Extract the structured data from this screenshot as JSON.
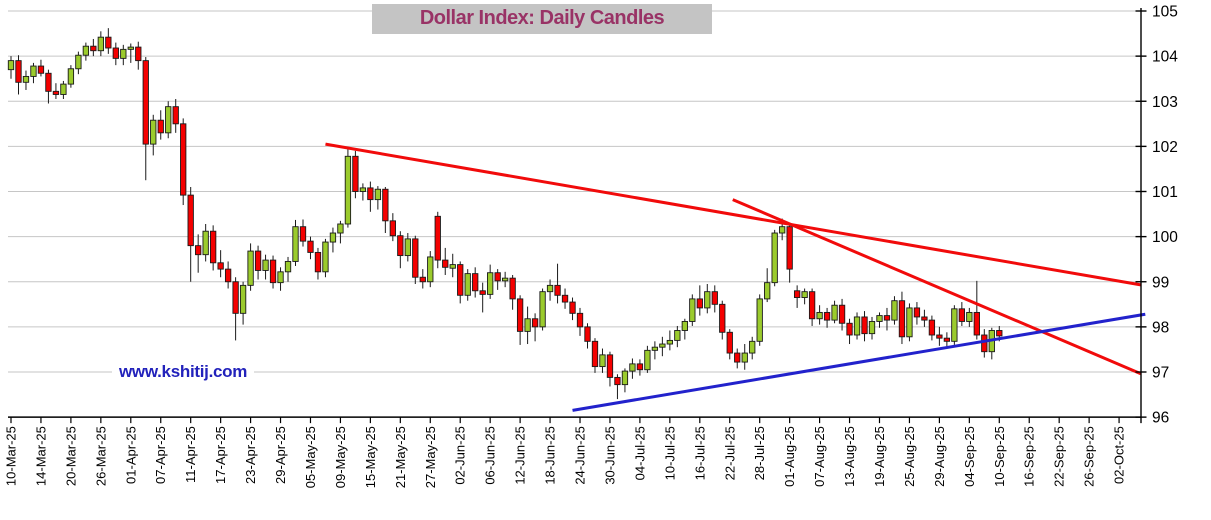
{
  "title": "Dollar Index: Daily Candles",
  "watermark": "www.kshitij.com",
  "colors": {
    "up_candle": "#9bcb2d",
    "down_candle": "#f40000",
    "candle_outline": "#1a1a1a",
    "wick": "#1a1a1a",
    "trendline_red": "#f10b0b",
    "trendline_blue": "#2222cc",
    "grid": "#c6c6c6",
    "axis": "#000000",
    "tick_label": "#000000",
    "title_color": "#993366",
    "title_bg": "#c4c4c4",
    "watermark_color": "#2222bb",
    "background": "#ffffff"
  },
  "chart_data": {
    "type": "candlestick",
    "title": "Dollar Index: Daily Candles",
    "ylim": [
      96,
      105
    ],
    "y_ticks": [
      96,
      97,
      98,
      99,
      100,
      101,
      102,
      103,
      104,
      105
    ],
    "grid": "horizontal-only",
    "x_tick_labels": [
      "10-Mar-25",
      "14-Mar-25",
      "20-Mar-25",
      "26-Mar-25",
      "01-Apr-25",
      "07-Apr-25",
      "11-Apr-25",
      "17-Apr-25",
      "23-Apr-25",
      "29-Apr-25",
      "05-May-25",
      "09-May-25",
      "15-May-25",
      "21-May-25",
      "27-May-25",
      "02-Jun-25",
      "06-Jun-25",
      "12-Jun-25",
      "18-Jun-25",
      "24-Jun-25",
      "30-Jun-25",
      "04-Jul-25",
      "10-Jul-25",
      "16-Jul-25",
      "22-Jul-25",
      "28-Jul-25",
      "01-Aug-25",
      "07-Aug-25",
      "13-Aug-25",
      "19-Aug-25",
      "25-Aug-25",
      "29-Aug-25",
      "04-Sep-25",
      "10-Sep-25",
      "16-Sep-25",
      "22-Sep-25",
      "26-Sep-25",
      "02-Oct-25"
    ],
    "label_every_n_candles": 4,
    "slots_total": 149,
    "first_candle_label": "10-Mar-25",
    "last_candle_label": "10-Sep-25",
    "ohlc_format": [
      "open",
      "high",
      "low",
      "close"
    ],
    "candles": [
      [
        103.7,
        104.0,
        103.5,
        103.9
      ],
      [
        103.9,
        104.02,
        103.15,
        103.42
      ],
      [
        103.42,
        103.68,
        103.25,
        103.55
      ],
      [
        103.55,
        103.85,
        103.4,
        103.78
      ],
      [
        103.78,
        103.92,
        103.55,
        103.62
      ],
      [
        103.62,
        103.7,
        102.95,
        103.22
      ],
      [
        103.22,
        103.4,
        103.05,
        103.15
      ],
      [
        103.15,
        103.45,
        103.05,
        103.38
      ],
      [
        103.38,
        103.8,
        103.3,
        103.72
      ],
      [
        103.72,
        104.1,
        103.6,
        104.02
      ],
      [
        104.02,
        104.3,
        103.9,
        104.22
      ],
      [
        104.22,
        104.38,
        104.0,
        104.12
      ],
      [
        104.12,
        104.55,
        104.0,
        104.42
      ],
      [
        104.42,
        104.62,
        104.05,
        104.18
      ],
      [
        104.18,
        104.3,
        103.8,
        103.95
      ],
      [
        103.95,
        104.25,
        103.8,
        104.15
      ],
      [
        104.15,
        104.28,
        103.85,
        104.2
      ],
      [
        104.2,
        104.32,
        103.7,
        103.9
      ],
      [
        103.9,
        103.98,
        101.25,
        102.05
      ],
      [
        102.05,
        102.7,
        101.8,
        102.58
      ],
      [
        102.58,
        102.8,
        102.15,
        102.3
      ],
      [
        102.3,
        103.0,
        102.18,
        102.88
      ],
      [
        102.88,
        103.05,
        102.3,
        102.5
      ],
      [
        102.5,
        102.62,
        100.7,
        100.92
      ],
      [
        100.92,
        101.1,
        99.0,
        99.8
      ],
      [
        99.8,
        100.05,
        99.2,
        99.6
      ],
      [
        99.6,
        100.28,
        99.45,
        100.12
      ],
      [
        100.12,
        100.25,
        99.25,
        99.42
      ],
      [
        99.42,
        99.7,
        99.1,
        99.28
      ],
      [
        99.28,
        99.45,
        98.85,
        99.0
      ],
      [
        99.0,
        99.1,
        97.7,
        98.3
      ],
      [
        98.3,
        99.0,
        98.05,
        98.92
      ],
      [
        98.92,
        99.85,
        98.8,
        99.68
      ],
      [
        99.68,
        99.8,
        99.05,
        99.25
      ],
      [
        99.25,
        99.6,
        99.05,
        99.48
      ],
      [
        99.48,
        99.58,
        98.85,
        98.98
      ],
      [
        98.98,
        99.32,
        98.8,
        99.22
      ],
      [
        99.22,
        99.55,
        99.0,
        99.45
      ],
      [
        99.45,
        100.37,
        99.35,
        100.22
      ],
      [
        100.22,
        100.38,
        99.78,
        99.9
      ],
      [
        99.9,
        100.0,
        99.5,
        99.65
      ],
      [
        99.65,
        99.75,
        99.05,
        99.22
      ],
      [
        99.22,
        99.95,
        99.1,
        99.88
      ],
      [
        99.88,
        100.2,
        99.65,
        100.08
      ],
      [
        100.08,
        100.35,
        99.85,
        100.28
      ],
      [
        100.28,
        101.98,
        100.2,
        101.78
      ],
      [
        101.78,
        101.9,
        100.85,
        101.0
      ],
      [
        101.0,
        101.18,
        100.8,
        101.08
      ],
      [
        101.08,
        101.22,
        100.55,
        100.82
      ],
      [
        100.82,
        101.12,
        100.6,
        101.05
      ],
      [
        101.05,
        101.1,
        100.08,
        100.35
      ],
      [
        100.35,
        100.52,
        99.9,
        100.02
      ],
      [
        100.02,
        100.12,
        99.3,
        99.58
      ],
      [
        99.58,
        100.08,
        99.45,
        99.95
      ],
      [
        99.95,
        100.02,
        98.95,
        99.1
      ],
      [
        99.1,
        99.28,
        98.85,
        99.0
      ],
      [
        99.0,
        99.68,
        98.88,
        99.55
      ],
      [
        100.45,
        100.55,
        99.3,
        99.48
      ],
      [
        99.48,
        99.75,
        99.15,
        99.32
      ],
      [
        99.3,
        99.62,
        99.1,
        99.38
      ],
      [
        99.38,
        99.45,
        98.52,
        98.7
      ],
      [
        98.7,
        99.28,
        98.58,
        99.18
      ],
      [
        99.18,
        99.32,
        98.65,
        98.8
      ],
      [
        98.8,
        98.98,
        98.32,
        98.72
      ],
      [
        98.72,
        99.38,
        98.62,
        99.2
      ],
      [
        99.2,
        99.28,
        98.82,
        99.02
      ],
      [
        99.02,
        99.22,
        98.88,
        99.08
      ],
      [
        99.08,
        99.15,
        98.38,
        98.62
      ],
      [
        98.62,
        98.7,
        97.6,
        97.9
      ],
      [
        97.9,
        98.45,
        97.62,
        98.18
      ],
      [
        98.18,
        98.3,
        97.68,
        98.0
      ],
      [
        98.0,
        98.85,
        97.92,
        98.78
      ],
      [
        98.78,
        99.05,
        98.58,
        98.92
      ],
      [
        98.92,
        99.4,
        98.52,
        98.7
      ],
      [
        98.7,
        98.85,
        98.4,
        98.55
      ],
      [
        98.55,
        98.65,
        98.15,
        98.3
      ],
      [
        98.3,
        98.42,
        97.8,
        98.0
      ],
      [
        98.0,
        98.08,
        97.52,
        97.68
      ],
      [
        97.68,
        97.75,
        96.98,
        97.12
      ],
      [
        97.12,
        97.52,
        96.98,
        97.38
      ],
      [
        97.38,
        97.45,
        96.68,
        96.88
      ],
      [
        96.88,
        96.95,
        96.4,
        96.72
      ],
      [
        96.72,
        97.08,
        96.55,
        97.02
      ],
      [
        97.02,
        97.3,
        96.85,
        97.18
      ],
      [
        97.18,
        97.28,
        96.92,
        97.05
      ],
      [
        97.05,
        97.58,
        96.98,
        97.48
      ],
      [
        97.48,
        97.68,
        97.28,
        97.55
      ],
      [
        97.55,
        97.78,
        97.35,
        97.62
      ],
      [
        97.62,
        97.92,
        97.48,
        97.7
      ],
      [
        97.7,
        98.02,
        97.55,
        97.92
      ],
      [
        97.92,
        98.18,
        97.72,
        98.12
      ],
      [
        98.12,
        98.72,
        98.02,
        98.62
      ],
      [
        98.62,
        98.92,
        98.25,
        98.42
      ],
      [
        98.42,
        98.95,
        98.3,
        98.78
      ],
      [
        98.78,
        98.92,
        98.32,
        98.5
      ],
      [
        98.5,
        98.58,
        97.72,
        97.88
      ],
      [
        97.88,
        97.95,
        97.28,
        97.42
      ],
      [
        97.42,
        97.52,
        97.08,
        97.22
      ],
      [
        97.22,
        97.62,
        97.05,
        97.42
      ],
      [
        97.42,
        97.78,
        97.28,
        97.68
      ],
      [
        97.68,
        98.72,
        97.58,
        98.62
      ],
      [
        98.62,
        99.3,
        98.55,
        98.98
      ],
      [
        98.98,
        100.15,
        98.9,
        100.08
      ],
      [
        100.08,
        100.4,
        99.92,
        100.22
      ],
      [
        100.22,
        100.3,
        98.98,
        99.28
      ],
      [
        98.8,
        98.92,
        98.42,
        98.65
      ],
      [
        98.65,
        98.85,
        98.5,
        98.78
      ],
      [
        98.78,
        98.85,
        98.02,
        98.18
      ],
      [
        98.18,
        98.48,
        98.05,
        98.32
      ],
      [
        98.32,
        98.42,
        97.98,
        98.15
      ],
      [
        98.15,
        98.58,
        98.08,
        98.48
      ],
      [
        98.48,
        98.62,
        97.92,
        98.08
      ],
      [
        98.08,
        98.18,
        97.62,
        97.82
      ],
      [
        97.82,
        98.32,
        97.72,
        98.22
      ],
      [
        98.22,
        98.35,
        97.68,
        97.85
      ],
      [
        97.85,
        98.22,
        97.72,
        98.12
      ],
      [
        98.12,
        98.32,
        97.98,
        98.25
      ],
      [
        98.25,
        98.42,
        97.92,
        98.15
      ],
      [
        98.15,
        98.68,
        98.05,
        98.58
      ],
      [
        98.58,
        98.78,
        97.62,
        97.78
      ],
      [
        97.78,
        98.52,
        97.68,
        98.42
      ],
      [
        98.42,
        98.55,
        98.05,
        98.22
      ],
      [
        98.22,
        98.38,
        98.0,
        98.15
      ],
      [
        98.15,
        98.25,
        97.7,
        97.82
      ],
      [
        97.82,
        98.0,
        97.58,
        97.75
      ],
      [
        97.75,
        97.88,
        97.55,
        97.68
      ],
      [
        97.68,
        98.48,
        97.6,
        98.4
      ],
      [
        98.4,
        98.55,
        98.02,
        98.12
      ],
      [
        98.12,
        98.42,
        98.0,
        98.32
      ],
      [
        98.32,
        99.02,
        97.72,
        97.82
      ],
      [
        97.82,
        97.95,
        97.32,
        97.45
      ],
      [
        97.45,
        97.98,
        97.28,
        97.92
      ],
      [
        97.92,
        98.02,
        97.68,
        97.8
      ]
    ],
    "trendlines": [
      {
        "name": "upper-falling-resistance",
        "color": "#f10b0b",
        "from": {
          "slot": 42.0,
          "price": 102.05
        },
        "to": {
          "slot": 150.9,
          "price": 98.93
        }
      },
      {
        "name": "steep-falling-resistance",
        "color": "#f10b0b",
        "from": {
          "slot": 96.4,
          "price": 100.82
        },
        "to": {
          "slot": 150.9,
          "price": 96.96
        }
      },
      {
        "name": "rising-support",
        "color": "#2222cc",
        "from": {
          "slot": 75.0,
          "price": 96.15
        },
        "to": {
          "slot": 151.5,
          "price": 98.28
        }
      }
    ]
  }
}
